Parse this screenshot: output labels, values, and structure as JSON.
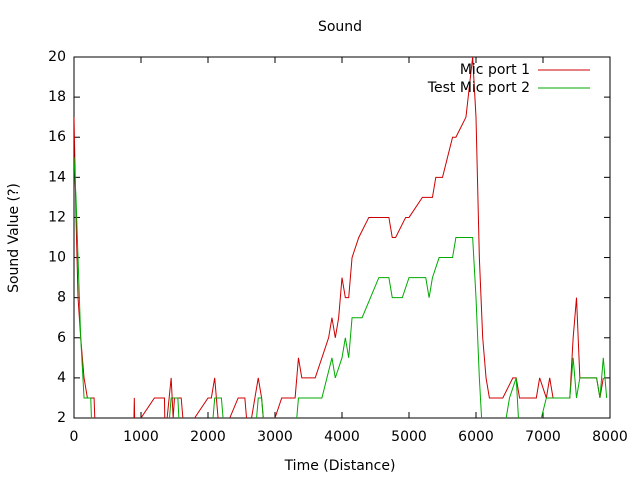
{
  "chart_data": {
    "type": "line",
    "title": "Sound",
    "xlabel": "Time (Distance)",
    "ylabel": "Sound Value (?)",
    "xlim": [
      0,
      8000
    ],
    "ylim": [
      2,
      20
    ],
    "xticks": [
      0,
      1000,
      2000,
      3000,
      4000,
      5000,
      6000,
      7000,
      8000
    ],
    "yticks": [
      2,
      4,
      6,
      8,
      10,
      12,
      14,
      16,
      18,
      20
    ],
    "legend": "top-right",
    "series": [
      {
        "name": "Mic port 1",
        "color": "#cc0000",
        "x": [
          0,
          30,
          60,
          100,
          150,
          200,
          300,
          320,
          890,
          900,
          910,
          1000,
          1200,
          1350,
          1360,
          1450,
          1480,
          1500,
          1600,
          1650,
          1800,
          2000,
          2050,
          2100,
          2150,
          2200,
          2450,
          2550,
          2600,
          2700,
          2750,
          2800,
          2850,
          3000,
          3100,
          3300,
          3350,
          3400,
          3600,
          3800,
          3850,
          3900,
          3950,
          4000,
          4050,
          4100,
          4150,
          4250,
          4400,
          4700,
          4750,
          4800,
          4950,
          5000,
          5200,
          5350,
          5400,
          5500,
          5650,
          5700,
          5850,
          5950,
          6000,
          6050,
          6100,
          6150,
          6200,
          6400,
          6550,
          6600,
          6650,
          6900,
          6950,
          7050,
          7100,
          7150,
          7400,
          7450,
          7500,
          7550,
          7600,
          7800,
          7850,
          7900
        ],
        "values": [
          17,
          12,
          8,
          6,
          4,
          3,
          3,
          1,
          1,
          3,
          1,
          2,
          3,
          3,
          1,
          4,
          2,
          3,
          3,
          1,
          2,
          3,
          3,
          4,
          2,
          1,
          3,
          3,
          1,
          3,
          4,
          3,
          1,
          2,
          3,
          3,
          5,
          4,
          4,
          6,
          7,
          6,
          7,
          9,
          8,
          8,
          10,
          11,
          12,
          12,
          11,
          11,
          12,
          12,
          13,
          13,
          14,
          14,
          16,
          16,
          17,
          20,
          17,
          10,
          6,
          4,
          3,
          3,
          4,
          4,
          3,
          3,
          4,
          3,
          4,
          3,
          3,
          6,
          8,
          4,
          4,
          4,
          3,
          4
        ]
      },
      {
        "name": "Test Mic port 2",
        "color": "#00aa00",
        "x": [
          0,
          30,
          60,
          100,
          150,
          250,
          270,
          1400,
          1450,
          1550,
          1580,
          2050,
          2100,
          2200,
          2250,
          2700,
          2750,
          2800,
          2850,
          3300,
          3350,
          3700,
          3850,
          3900,
          4000,
          4050,
          4100,
          4150,
          4300,
          4550,
          4700,
          4750,
          4900,
          5000,
          5250,
          5300,
          5350,
          5450,
          5650,
          5700,
          5950,
          6000,
          6050,
          6100,
          6400,
          6500,
          6600,
          6650,
          6900,
          7050,
          7100,
          7400,
          7450,
          7500,
          7550,
          7800,
          7850,
          7900,
          7950
        ],
        "values": [
          15,
          13,
          10,
          6,
          3,
          3,
          1,
          1,
          3,
          3,
          1,
          1,
          3,
          3,
          1,
          1,
          3,
          3,
          1,
          1,
          3,
          3,
          5,
          4,
          5,
          6,
          5,
          7,
          7,
          9,
          9,
          8,
          8,
          9,
          9,
          8,
          9,
          10,
          10,
          11,
          11,
          8,
          4,
          1,
          1,
          3,
          4,
          1,
          1,
          3,
          3,
          3,
          5,
          3,
          4,
          4,
          3,
          5,
          3
        ]
      }
    ]
  }
}
